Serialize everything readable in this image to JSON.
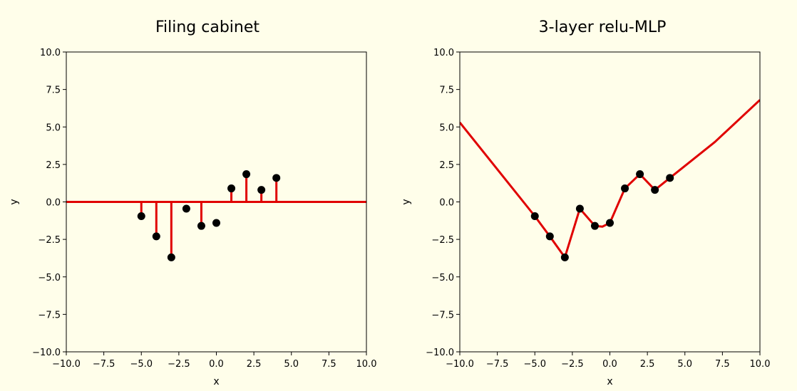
{
  "chart_data": [
    {
      "type": "stem",
      "title": "Filing cabinet",
      "xlabel": "x",
      "ylabel": "y",
      "xlim": [
        -10,
        10
      ],
      "ylim": [
        -10,
        10
      ],
      "xticks": [
        -10,
        -7.5,
        -5,
        -2.5,
        0,
        2.5,
        5,
        7.5,
        10
      ],
      "yticks": [
        -10,
        -7.5,
        -5,
        -2.5,
        0,
        2.5,
        5,
        7.5,
        10
      ],
      "xtick_labels": [
        "−10.0",
        "−7.5",
        "−5.0",
        "−2.5",
        "0.0",
        "2.5",
        "5.0",
        "7.5",
        "10.0"
      ],
      "ytick_labels": [
        "−10.0",
        "−7.5",
        "−5.0",
        "−2.5",
        "0.0",
        "2.5",
        "5.0",
        "7.5",
        "10.0"
      ],
      "grid": false,
      "points": {
        "x": [
          -5,
          -4,
          -3,
          -2,
          -1,
          0,
          1,
          2,
          3,
          4
        ],
        "y": [
          -0.95,
          -2.3,
          -3.7,
          -0.45,
          -1.6,
          -1.4,
          0.9,
          1.85,
          0.8,
          1.6
        ]
      },
      "model_line": {
        "x": [
          -10,
          10
        ],
        "y": [
          0,
          0
        ]
      },
      "stems": [
        {
          "x": -5,
          "y": -0.95
        },
        {
          "x": -4,
          "y": -2.3
        },
        {
          "x": -3,
          "y": -3.7
        },
        {
          "x": -1,
          "y": -1.6
        },
        {
          "x": 1,
          "y": 0.9
        },
        {
          "x": 2,
          "y": 1.85
        },
        {
          "x": 3,
          "y": 0.8
        },
        {
          "x": 4,
          "y": 1.6
        }
      ]
    },
    {
      "type": "line",
      "title": "3-layer relu-MLP",
      "xlabel": "x",
      "ylabel": "y",
      "xlim": [
        -10,
        10
      ],
      "ylim": [
        -10,
        10
      ],
      "xticks": [
        -10,
        -7.5,
        -5,
        -2.5,
        0,
        2.5,
        5,
        7.5,
        10
      ],
      "yticks": [
        -10,
        -7.5,
        -5,
        -2.5,
        0,
        2.5,
        5,
        7.5,
        10
      ],
      "xtick_labels": [
        "−10.0",
        "−7.5",
        "−5.0",
        "−2.5",
        "0.0",
        "2.5",
        "5.0",
        "7.5",
        "10.0"
      ],
      "ytick_labels": [
        "−10.0",
        "−7.5",
        "−5.0",
        "−2.5",
        "0.0",
        "2.5",
        "5.0",
        "7.5",
        "10.0"
      ],
      "grid": false,
      "points": {
        "x": [
          -5,
          -4,
          -3,
          -2,
          -1,
          0,
          1,
          2,
          3,
          4
        ],
        "y": [
          -0.95,
          -2.3,
          -3.7,
          -0.45,
          -1.6,
          -1.4,
          0.9,
          1.85,
          0.8,
          1.6
        ]
      },
      "model_line": {
        "x": [
          -10,
          -5,
          -4,
          -3,
          -2,
          -1,
          -0.5,
          0,
          1,
          2,
          3,
          4,
          7,
          10
        ],
        "y": [
          5.3,
          -0.95,
          -2.3,
          -3.7,
          -0.45,
          -1.6,
          -1.65,
          -1.4,
          0.9,
          1.85,
          0.8,
          1.6,
          4.0,
          6.8
        ]
      }
    }
  ],
  "colors": {
    "background": "#fffeea",
    "model_line": "#e00000",
    "points": "#000000",
    "axes": "#000000"
  }
}
